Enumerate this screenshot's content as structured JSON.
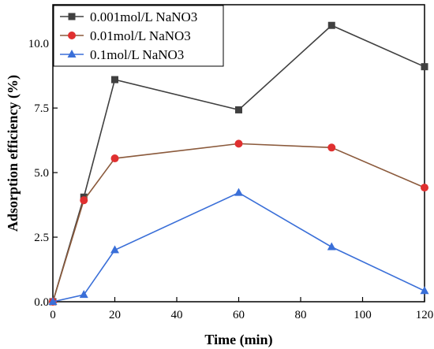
{
  "chart_data": {
    "type": "line",
    "title": "",
    "xlabel": "Time (min)",
    "ylabel": "Adsorption efficiency (%)",
    "xlim": [
      0,
      120
    ],
    "ylim": [
      0,
      11.5
    ],
    "xticks": [
      0,
      20,
      40,
      60,
      80,
      100,
      120
    ],
    "yticks": [
      0.0,
      2.5,
      5.0,
      7.5,
      10.0
    ],
    "ytick_labels": [
      "0.0",
      "2.5",
      "5.0",
      "7.5",
      "10.0"
    ],
    "grid": false,
    "legend_position": "top-left",
    "x": [
      0,
      10,
      20,
      60,
      90,
      120
    ],
    "series": [
      {
        "name": "0.001mol/L NaNO3",
        "marker": "square",
        "color": "#404040",
        "values": [
          0,
          4.05,
          8.6,
          7.43,
          10.7,
          9.1
        ]
      },
      {
        "name": "0.01mol/L NaNO3",
        "marker": "circle",
        "color": "#e03030",
        "line_color": "#8b5a3c",
        "values": [
          0,
          3.93,
          5.55,
          6.12,
          5.97,
          4.42
        ]
      },
      {
        "name": "0.1mol/L NaNO3",
        "marker": "triangle",
        "color": "#3a6fd8",
        "values": [
          0,
          0.27,
          2.0,
          4.22,
          2.12,
          0.42
        ]
      }
    ]
  }
}
